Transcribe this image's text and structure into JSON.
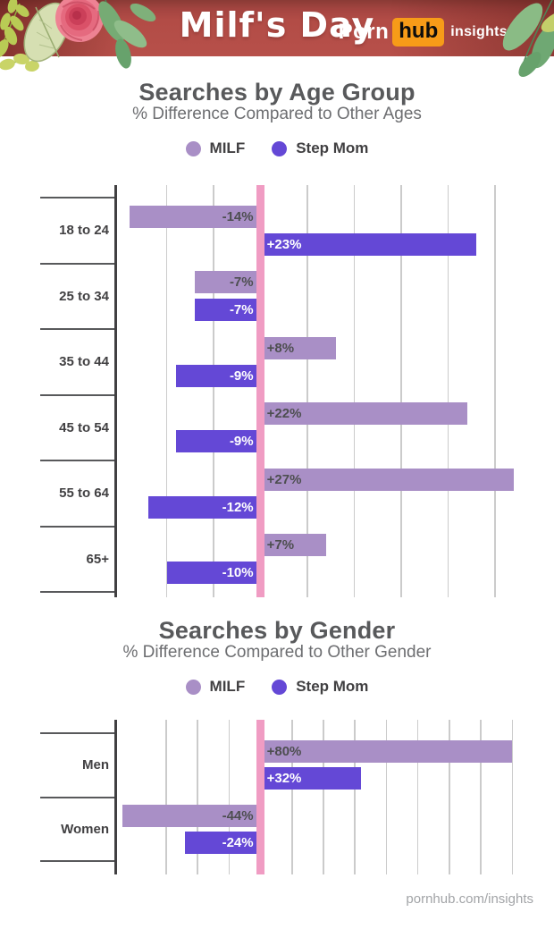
{
  "header": {
    "title": "Milf's Day",
    "brand": {
      "porn": "Porn",
      "hub": "hub",
      "insights": "insights"
    }
  },
  "footer": {
    "link": "pornhub.com/insights"
  },
  "colors": {
    "banner_red": "#b24c46",
    "banner_red_dark": "#8a3a35",
    "hub_orange": "#f79b18",
    "milf_purple": "#a98fc6",
    "stepmom_purple": "#6448d6",
    "zero_line_pink": "#f09cc3",
    "title_gray": "#58595b",
    "subtitle_gray": "#6d6e71",
    "gridline_gray": "#cbcbcb"
  },
  "chart_data": [
    {
      "type": "bar",
      "orientation": "horizontal",
      "title": "Searches by Age Group",
      "subtitle": "% Difference Compared to Other Ages",
      "unit": "%",
      "legend_position": "top",
      "grid": "vertical",
      "categories": [
        "18 to 24",
        "25 to 34",
        "35 to 44",
        "45 to 54",
        "55 to 64",
        "65+"
      ],
      "series": [
        {
          "name": "MILF",
          "color": "#a98fc6",
          "label_color": "#4d4e50",
          "values": [
            -14,
            -7,
            8,
            22,
            27,
            7
          ]
        },
        {
          "name": "Step Mom",
          "color": "#6448d6",
          "label_color": "#ffffff",
          "values": [
            23,
            -7,
            -9,
            -9,
            -12,
            -10
          ]
        }
      ],
      "value_labels": [
        [
          "-14%",
          "+23%"
        ],
        [
          "-7%",
          "-7%"
        ],
        [
          "+8%",
          "-9%"
        ],
        [
          "+22%",
          "-9%"
        ],
        [
          "+27%",
          "-12%"
        ],
        [
          "+7%",
          "-10%"
        ]
      ],
      "xlim": [
        -15.4,
        26.9
      ],
      "gridlines": [
        -10,
        -5,
        5,
        10,
        15,
        20,
        25
      ],
      "zero_line": 0
    },
    {
      "type": "bar",
      "orientation": "horizontal",
      "title": "Searches by Gender",
      "subtitle": "% Difference Compared to Other Gender",
      "unit": "%",
      "legend_position": "top",
      "grid": "vertical",
      "categories": [
        "Men",
        "Women"
      ],
      "series": [
        {
          "name": "MILF",
          "color": "#a98fc6",
          "label_color": "#4d4e50",
          "values": [
            80,
            -44
          ]
        },
        {
          "name": "Step Mom",
          "color": "#6448d6",
          "label_color": "#ffffff",
          "values": [
            32,
            -24
          ]
        }
      ],
      "value_labels": [
        [
          "+80%",
          "+32%"
        ],
        [
          "-44%",
          "-24%"
        ]
      ],
      "xlim": [
        -45.9,
        80.2
      ],
      "gridlines": [
        -30,
        -20,
        -10,
        10,
        20,
        30,
        40,
        50,
        60,
        70,
        80
      ],
      "zero_line": 0
    }
  ]
}
